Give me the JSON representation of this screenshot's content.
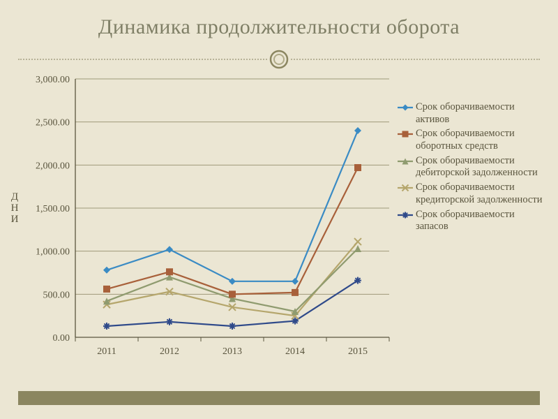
{
  "slide": {
    "title": "Динамика продолжительности оборота",
    "background_color": "#ebe6d3",
    "title_color": "#7f7f66",
    "title_fontsize": 30,
    "footer_bar_color": "#8b8660"
  },
  "chart": {
    "type": "line",
    "ylabel": "Д\nН\nИ",
    "ylabel_fontsize": 15,
    "categories": [
      "2011",
      "2012",
      "2013",
      "2014",
      "2015"
    ],
    "ylim": [
      0,
      3000
    ],
    "ytick_step": 500,
    "ytick_labels": [
      "0.00",
      "500.00",
      "1,000.00",
      "1,500.00",
      "2,000.00",
      "2,500.00",
      "3,000.00"
    ],
    "tick_fontsize": 14,
    "tick_color": "#5a553e",
    "plot_background": "#ebe6d3",
    "axis_color": "#5a553e",
    "grid_color": "#9e9979",
    "grid_width": 1,
    "line_width": 2.2,
    "marker_size": 5,
    "series": [
      {
        "name": "Срок оборачиваемости активов",
        "color": "#3a8bc4",
        "marker": "diamond",
        "values": [
          780,
          1020,
          650,
          650,
          2400
        ]
      },
      {
        "name": "Срок оборачиваемости оборотных средств",
        "color": "#a8603a",
        "marker": "square",
        "values": [
          560,
          760,
          500,
          520,
          1970
        ]
      },
      {
        "name": "Срок оборачиваемости дебиторской задолженности",
        "color": "#8f9b6f",
        "marker": "triangle",
        "values": [
          420,
          700,
          450,
          300,
          1030
        ]
      },
      {
        "name": "Срок оборачиваемости кредиторской задолженности",
        "color": "#b5a66c",
        "marker": "x",
        "values": [
          380,
          530,
          350,
          250,
          1110
        ]
      },
      {
        "name": "Срок оборачиваемости запасов",
        "color": "#2f4a8a",
        "marker": "asterisk",
        "values": [
          130,
          180,
          130,
          190,
          660
        ]
      }
    ]
  },
  "legend": {
    "fontsize": 14.5,
    "text_color": "#5a553e"
  }
}
